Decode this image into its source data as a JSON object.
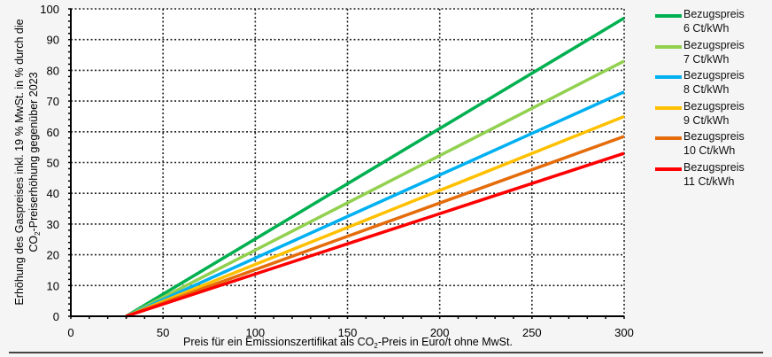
{
  "chart_data": {
    "type": "line",
    "title": "",
    "xlabel": "Preis für ein Emissionszertifikat als CO2-Preis in Euro/t ohne MwSt.",
    "ylabel": "Erhöhung des Gaspreises inkl. 19 % MwSt. in % durch die CO2-Preiserhöhung gegenüber 2023",
    "xlim": [
      0,
      300
    ],
    "ylim": [
      0,
      100
    ],
    "xticks": [
      0,
      50,
      100,
      150,
      200,
      250,
      300
    ],
    "yticks": [
      0,
      10,
      20,
      30,
      40,
      50,
      60,
      70,
      80,
      90,
      100
    ],
    "grid": true,
    "legend_position": "right",
    "x": [
      30,
      300
    ],
    "series": [
      {
        "name": "Bezugspreis 6 Ct/kWh",
        "color": "#00b050",
        "values": [
          0,
          97
        ]
      },
      {
        "name": "Bezugspreis 7 Ct/kWh",
        "color": "#92d050",
        "values": [
          0,
          83
        ]
      },
      {
        "name": "Bezugspreis 8 Ct/kWh",
        "color": "#00b0f0",
        "values": [
          0,
          73
        ]
      },
      {
        "name": "Bezugspreis 9 Ct/kWh",
        "color": "#ffc000",
        "values": [
          0,
          65
        ]
      },
      {
        "name": "Bezugspreis 10 Ct/kWh",
        "color": "#e46c0a",
        "values": [
          0,
          58.5
        ]
      },
      {
        "name": "Bezugspreis 11 Ct/kWh",
        "color": "#ff0000",
        "values": [
          0,
          53
        ]
      }
    ]
  },
  "axis": {
    "ylabel_line1": "Erhöhung des Gaspreises  inkl. 19 % MwSt. in %  durch die",
    "ylabel_line2_pre": "CO",
    "ylabel_line2_sub": "2",
    "ylabel_line2_post": "-Preiserhöhung gegenüber 2023",
    "xlabel_pre": "Preis für ein Emissionszertifikat als CO",
    "xlabel_sub": "2",
    "xlabel_post": "-Preis in Euro/t ohne MwSt."
  },
  "legend": [
    {
      "line1": "Bezugspreis",
      "line2": "6 Ct/kWh",
      "color": "#00b050"
    },
    {
      "line1": "Bezugspreis",
      "line2": "7 Ct/kWh",
      "color": "#92d050"
    },
    {
      "line1": "Bezugspreis",
      "line2": "8 Ct/kWh",
      "color": "#00b0f0"
    },
    {
      "line1": "Bezugspreis",
      "line2": "9 Ct/kWh",
      "color": "#ffc000"
    },
    {
      "line1": "Bezugspreis",
      "line2": "10 Ct/kWh",
      "color": "#e46c0a"
    },
    {
      "line1": "Bezugspreis",
      "line2": "11 Ct/kWh",
      "color": "#ff0000"
    }
  ]
}
